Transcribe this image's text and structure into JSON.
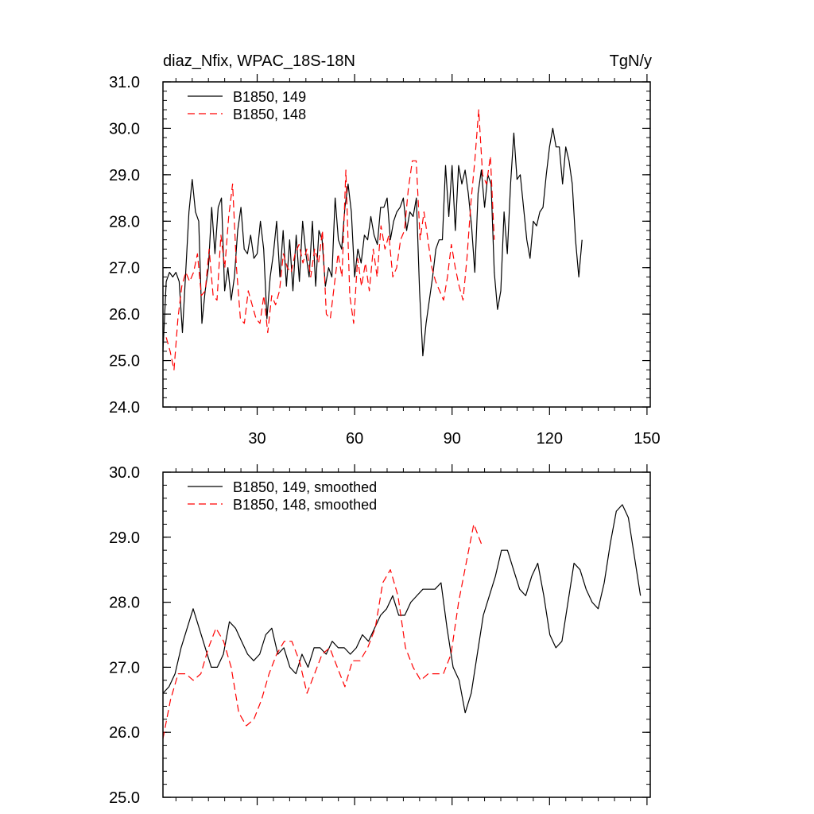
{
  "chart_data": [
    {
      "type": "line",
      "title": "diaz_Nfix, WPAC_18S-18N",
      "units": "TgN/y",
      "xlim": [
        1,
        151
      ],
      "ylim": [
        24,
        31
      ],
      "xticks": [
        30,
        60,
        90,
        120,
        150
      ],
      "yticks": [
        24,
        25,
        26,
        27,
        28,
        29,
        30,
        31
      ],
      "xticklabels": [
        "30",
        "60",
        "90",
        "120",
        "150"
      ],
      "yticklabels": [
        "24.0",
        "25.0",
        "26.0",
        "27.0",
        "28.0",
        "29.0",
        "30.0",
        "31.0"
      ],
      "legend": "top-left",
      "series": [
        {
          "name": "B1850, 149",
          "color": "#000000",
          "dash": "solid",
          "x_start": 1,
          "values": [
            25.2,
            26.7,
            26.9,
            26.8,
            26.9,
            26.7,
            25.6,
            26.9,
            28.2,
            28.9,
            28.2,
            28.0,
            25.8,
            26.5,
            27.0,
            28.3,
            27.3,
            28.3,
            28.5,
            26.5,
            27.0,
            26.3,
            26.8,
            27.8,
            28.3,
            27.4,
            27.3,
            27.7,
            27.2,
            27.3,
            28.0,
            27.4,
            25.9,
            26.8,
            27.3,
            28.0,
            26.8,
            27.8,
            26.6,
            27.6,
            26.5,
            27.7,
            26.7,
            28.0,
            27.3,
            26.8,
            28.0,
            26.6,
            27.8,
            27.6,
            26.6,
            27.0,
            26.8,
            28.5,
            27.6,
            27.4,
            28.3,
            28.8,
            28.2,
            26.8,
            27.4,
            27.1,
            27.7,
            27.6,
            28.1,
            27.7,
            27.5,
            28.3,
            28.3,
            28.5,
            27.6,
            28.0,
            28.2,
            28.3,
            28.5,
            27.8,
            28.2,
            28.1,
            28.5,
            26.5,
            25.1,
            25.8,
            26.3,
            26.8,
            27.4,
            27.6,
            27.6,
            29.2,
            28.1,
            29.2,
            27.8,
            29.2,
            28.8,
            29.1,
            28.6,
            27.9,
            26.9,
            28.6,
            29.1,
            28.3,
            29.0,
            28.8,
            26.9,
            26.1,
            26.5,
            28.2,
            27.3,
            28.8,
            29.9,
            28.9,
            29.0,
            28.3,
            27.6,
            27.2,
            28.0,
            27.9,
            28.2,
            28.3,
            29.0,
            29.6,
            30.0,
            29.6,
            29.6,
            28.8,
            29.6,
            29.3,
            28.8,
            27.6,
            26.8,
            27.6
          ]
        },
        {
          "name": "B1850, 148",
          "color": "#ff0000",
          "dash": "dashed",
          "x_start": 1,
          "values": [
            25.5,
            25.2,
            24.8,
            25.9,
            26.6,
            26.9,
            26.7,
            26.9,
            27.3,
            26.4,
            26.5,
            27.4,
            26.4,
            26.3,
            27.7,
            27.0,
            28.1,
            28.8,
            27.0,
            25.9,
            25.8,
            26.5,
            26.2,
            25.9,
            25.8,
            26.4,
            25.6,
            26.4,
            26.2,
            26.5,
            27.3,
            27.0,
            26.9,
            27.3,
            27.5,
            27.1,
            27.4,
            26.8,
            27.4,
            27.1,
            27.8,
            26.0,
            25.9,
            26.6,
            27.3,
            26.8,
            29.1,
            26.4,
            25.8,
            27.2,
            26.6,
            27.1,
            26.5,
            27.4,
            26.8,
            27.9,
            27.4,
            27.7,
            26.8,
            27.0,
            27.6,
            27.8,
            28.7,
            29.3,
            29.3,
            27.6,
            28.2,
            27.6,
            27.0,
            26.7,
            26.5,
            26.3,
            26.8,
            27.5,
            27.0,
            26.6,
            26.3,
            27.2,
            28.4,
            29.3,
            30.4,
            29.0,
            28.8,
            29.4,
            27.6
          ],
          "x_values_note": "dashed series spans x = 2..103"
        }
      ]
    },
    {
      "type": "line",
      "title": "",
      "xlim": [
        1,
        151
      ],
      "ylim": [
        25,
        30
      ],
      "xticks": [
        30,
        60,
        90,
        120,
        150
      ],
      "yticks": [
        25,
        26,
        27,
        28,
        29,
        30
      ],
      "yticklabels": [
        "25.0",
        "26.0",
        "27.0",
        "28.0",
        "29.0",
        "30.0"
      ],
      "legend": "top-left",
      "series": [
        {
          "name": "B1850, 149, smoothed",
          "color": "#000000",
          "dash": "solid",
          "x_start": 1,
          "values": [
            26.6,
            26.7,
            26.9,
            27.3,
            27.6,
            27.9,
            27.6,
            27.3,
            27.0,
            27.0,
            27.2,
            27.7,
            27.6,
            27.4,
            27.2,
            27.1,
            27.2,
            27.5,
            27.6,
            27.2,
            27.3,
            27.0,
            26.9,
            27.2,
            27.0,
            27.3,
            27.3,
            27.2,
            27.4,
            27.3,
            27.3,
            27.2,
            27.3,
            27.5,
            27.4,
            27.6,
            27.8,
            27.9,
            28.1,
            27.8,
            27.8,
            28.0,
            28.1,
            28.2,
            28.2,
            28.2,
            28.3,
            27.6,
            27.0,
            26.8,
            26.3,
            26.6,
            27.2,
            27.8,
            28.1,
            28.4,
            28.8,
            28.8,
            28.5,
            28.2,
            28.1,
            28.4,
            28.6,
            28.1,
            27.5,
            27.3,
            27.4,
            28.0,
            28.6,
            28.5,
            28.2,
            28.0,
            27.9,
            28.3,
            28.9,
            29.4,
            29.5,
            29.3,
            28.7,
            28.1
          ],
          "x_values_note": "smoothed series spans x = 1..148"
        },
        {
          "name": "B1850, 148, smoothed",
          "color": "#ff0000",
          "dash": "dashed",
          "x_start": 2,
          "values": [
            25.9,
            26.5,
            26.9,
            26.9,
            26.8,
            26.9,
            27.3,
            27.6,
            27.4,
            27.0,
            26.3,
            26.1,
            26.2,
            26.5,
            26.9,
            27.2,
            27.4,
            27.4,
            27.1,
            26.6,
            26.9,
            27.2,
            27.3,
            27.0,
            26.7,
            27.1,
            27.1,
            27.3,
            27.6,
            28.3,
            28.5,
            28.1,
            27.3,
            27.0,
            26.8,
            26.9,
            26.9,
            26.9,
            27.2,
            28.0,
            28.6,
            29.2,
            28.9
          ],
          "x_values_note": "smoothed series spans x = 1..99"
        }
      ]
    }
  ]
}
